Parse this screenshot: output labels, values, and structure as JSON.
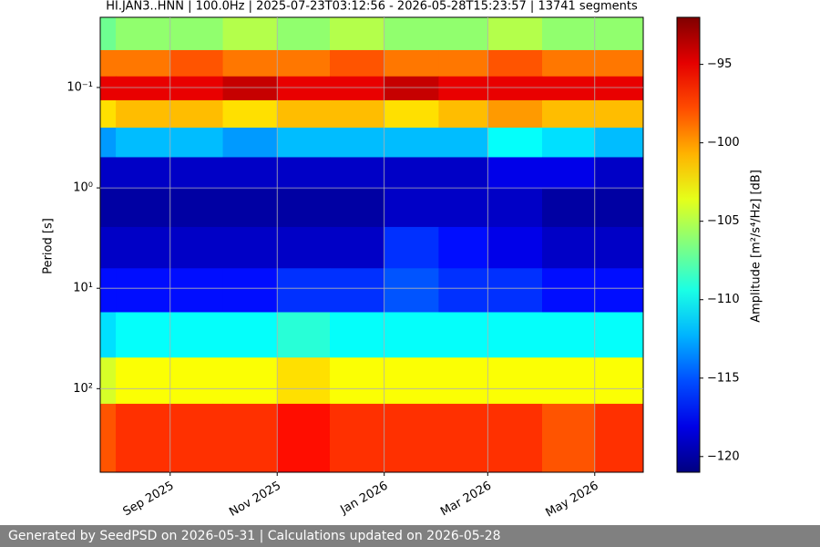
{
  "chart_data": {
    "type": "heatmap",
    "title": "HI.JAN3..HNN | 100.0Hz | 2025-07-23T03:12:56 - 2026-05-28T15:23:57 | 13741 segments",
    "y_label": "Period [s]",
    "colorbar_label": "Amplitude [m²/s⁴/Hz] [dB]",
    "xlim": [
      "2025-07-23T03:12:56",
      "2026-05-28T15:23:57"
    ],
    "xticks": [
      {
        "value": "2025-09",
        "label": "Sep 2025"
      },
      {
        "value": "2025-11",
        "label": "Nov 2025"
      },
      {
        "value": "2026-01",
        "label": "Jan 2026"
      },
      {
        "value": "2026-03",
        "label": "Mar 2026"
      },
      {
        "value": "2026-05",
        "label": "May 2026"
      }
    ],
    "ylim": [
      0.02,
      680
    ],
    "log_y": true,
    "y_inverted": true,
    "yticks": [
      {
        "value": 0.1,
        "label": "10⁻¹"
      },
      {
        "value": 1,
        "label": "10⁰"
      },
      {
        "value": 10,
        "label": "10¹"
      },
      {
        "value": 100,
        "label": "10²"
      }
    ],
    "grid": true,
    "colormap": "jet",
    "zlim": [
      -121,
      -92
    ],
    "zticks": [
      {
        "value": -95,
        "label": "−95"
      },
      {
        "value": -100,
        "label": "−100"
      },
      {
        "value": -105,
        "label": "−105"
      },
      {
        "value": -110,
        "label": "−110"
      },
      {
        "value": -115,
        "label": "−115"
      },
      {
        "value": -120,
        "label": "−120"
      }
    ],
    "x": [
      "2025-07",
      "2025-08",
      "2025-09",
      "2025-10",
      "2025-11",
      "2025-12",
      "2026-01",
      "2026-02",
      "2026-03",
      "2026-04",
      "2026-05"
    ],
    "y": [
      0.03,
      0.06,
      0.1,
      0.18,
      0.35,
      0.7,
      1.5,
      4,
      10,
      30,
      80,
      250
    ],
    "z": [
      [
        -107,
        -106,
        -106,
        -105,
        -106,
        -105,
        -106,
        -106,
        -105,
        -106,
        -106
      ],
      [
        -99,
        -99,
        -98,
        -99,
        -99,
        -98,
        -99,
        -99,
        -98,
        -99,
        -99
      ],
      [
        -95,
        -95,
        -95,
        -94,
        -95,
        -95,
        -94,
        -95,
        -95,
        -95,
        -95
      ],
      [
        -102,
        -101,
        -101,
        -102,
        -101,
        -101,
        -102,
        -101,
        -100,
        -101,
        -101
      ],
      [
        -113,
        -112,
        -112,
        -113,
        -112,
        -112,
        -112,
        -112,
        -110,
        -111,
        -112
      ],
      [
        -119,
        -119,
        -119,
        -119,
        -119,
        -119,
        -119,
        -119,
        -118,
        -118,
        -119
      ],
      [
        -120,
        -120,
        -120,
        -120,
        -120,
        -120,
        -119,
        -119,
        -119,
        -120,
        -120
      ],
      [
        -119,
        -119,
        -119,
        -119,
        -119,
        -119,
        -116,
        -117,
        -118,
        -119,
        -119
      ],
      [
        -117,
        -117,
        -117,
        -117,
        -116,
        -116,
        -115,
        -116,
        -116,
        -117,
        -117
      ],
      [
        -111,
        -110,
        -110,
        -110,
        -109,
        -110,
        -110,
        -110,
        -110,
        -110,
        -110
      ],
      [
        -104,
        -103,
        -103,
        -103,
        -102,
        -103,
        -103,
        -103,
        -103,
        -103,
        -103
      ],
      [
        -98,
        -97,
        -97,
        -97,
        -96,
        -97,
        -97,
        -97,
        -97,
        -98,
        -97
      ]
    ],
    "footer": "Generated by SeedPSD on 2026-05-31 | Calculations updated on 2026-05-28"
  }
}
